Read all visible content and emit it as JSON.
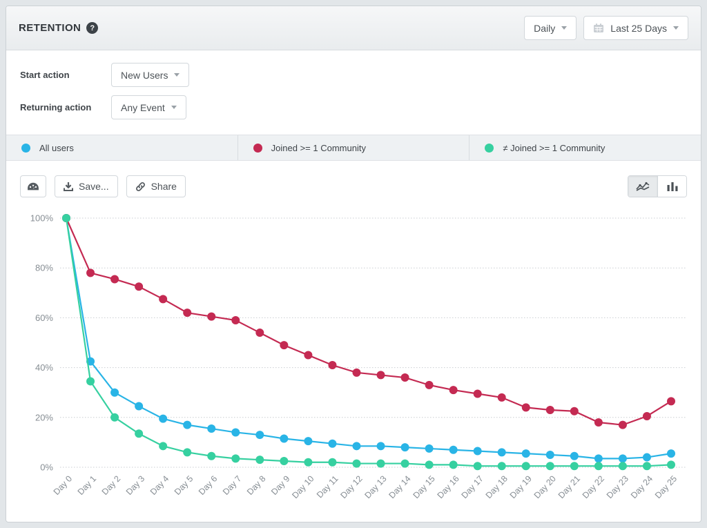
{
  "header": {
    "title": "RETENTION",
    "granularity": {
      "value": "Daily"
    },
    "date_range": {
      "value": "Last 25 Days"
    }
  },
  "filters": {
    "start": {
      "label": "Start action",
      "value": "New Users"
    },
    "returning": {
      "label": "Returning action",
      "value": "Any Event"
    }
  },
  "legend": [
    {
      "label": "All users",
      "color": "#29b4e6"
    },
    {
      "label": "Joined >= 1 Community",
      "color": "#c42a52"
    },
    {
      "label": "≠ Joined >= 1 Community",
      "color": "#36d0a0"
    }
  ],
  "toolbar": {
    "save_label": "Save...",
    "share_label": "Share"
  },
  "colors": {
    "grid": "#c9cdd1",
    "axis_text": "#878e94"
  },
  "chart_data": {
    "type": "line",
    "title": "",
    "xlabel": "",
    "ylabel": "",
    "ylim": [
      0,
      100
    ],
    "grid": "horizontal-dotted",
    "legend_position": "top-bar",
    "yticks": [
      0,
      20,
      40,
      60,
      80,
      100
    ],
    "ytick_labels": [
      "0%",
      "20%",
      "40%",
      "60%",
      "80%",
      "100%"
    ],
    "x": [
      "Day 0",
      "Day 1",
      "Day 2",
      "Day 3",
      "Day 4",
      "Day 5",
      "Day 6",
      "Day 7",
      "Day 8",
      "Day 9",
      "Day 10",
      "Day 11",
      "Day 12",
      "Day 13",
      "Day 14",
      "Day 15",
      "Day 16",
      "Day 17",
      "Day 18",
      "Day 19",
      "Day 20",
      "Day 21",
      "Day 22",
      "Day 23",
      "Day 24",
      "Day 25"
    ],
    "series": [
      {
        "name": "All users",
        "color": "#29b4e6",
        "values": [
          100,
          42.5,
          30,
          24.5,
          19.5,
          17,
          15.5,
          14,
          13,
          11.5,
          10.5,
          9.5,
          8.5,
          8.5,
          8,
          7.5,
          7,
          6.5,
          6,
          5.5,
          5,
          4.5,
          3.5,
          3.5,
          4,
          5.5
        ]
      },
      {
        "name": "Joined >= 1 Community",
        "color": "#c42a52",
        "values": [
          100,
          78,
          75.5,
          72.5,
          67.5,
          62,
          60.5,
          59,
          54,
          49,
          45,
          41,
          38,
          37,
          36,
          33,
          31,
          29.5,
          28,
          24,
          23,
          22.5,
          18,
          17,
          20.5,
          26.5
        ]
      },
      {
        "name": "≠ Joined >= 1 Community",
        "color": "#36d0a0",
        "values": [
          100,
          34.5,
          20,
          13.5,
          8.5,
          6,
          4.5,
          3.5,
          3,
          2.5,
          2,
          2,
          1.5,
          1.5,
          1.5,
          1,
          1,
          0.5,
          0.5,
          0.5,
          0.5,
          0.5,
          0.5,
          0.5,
          0.5,
          1
        ]
      }
    ]
  }
}
